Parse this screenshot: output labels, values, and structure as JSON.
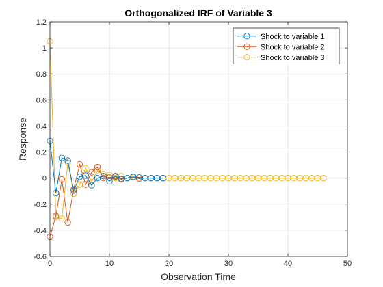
{
  "chart_data": {
    "type": "line",
    "title": "Orthogonalized IRF of Variable 3",
    "xlabel": "Observation Time",
    "ylabel": "Response",
    "xlim": [
      0,
      50
    ],
    "ylim": [
      -0.6,
      1.2
    ],
    "xticks": [
      0,
      10,
      20,
      30,
      40,
      50
    ],
    "yticks": [
      -0.6,
      -0.4,
      -0.2,
      0,
      0.2,
      0.4,
      0.6,
      0.8,
      1,
      1.2
    ],
    "xtick_labels": [
      "0",
      "10",
      "20",
      "30",
      "40",
      "50"
    ],
    "ytick_labels": [
      "-0.6",
      "-0.4",
      "-0.2",
      "0",
      "0.2",
      "0.4",
      "0.6",
      "0.8",
      "1",
      "1.2"
    ],
    "grid": true,
    "legend_position": "top-right",
    "marker": "open-circle",
    "series": [
      {
        "name": "Shock to variable 1",
        "color": "#0072BD",
        "x": [
          0,
          1,
          2,
          3,
          4,
          5,
          6,
          7,
          8,
          9,
          10,
          11,
          12,
          13,
          14,
          15,
          16,
          17,
          18,
          19
        ],
        "y": [
          0.285,
          -0.115,
          0.155,
          0.135,
          -0.095,
          0.01,
          0.02,
          -0.055,
          0.0,
          0.015,
          -0.025,
          0.015,
          -0.005,
          0.0,
          0.01,
          0.005,
          0.0,
          0.0,
          0.0,
          0.0
        ]
      },
      {
        "name": "Shock to variable 2",
        "color": "#D95319",
        "x": [
          0,
          1,
          2,
          3,
          4,
          5,
          6,
          7,
          8,
          9,
          10,
          11,
          12,
          13,
          14,
          15,
          16,
          17,
          18,
          19
        ],
        "y": [
          -0.45,
          -0.29,
          -0.01,
          -0.34,
          -0.085,
          0.105,
          -0.05,
          0.045,
          0.085,
          0.0,
          0.005,
          0.01,
          -0.01,
          0.0,
          0.01,
          -0.005,
          0.0,
          0.0,
          0.0,
          0.0
        ]
      },
      {
        "name": "Shock to variable 3",
        "color": "#EDB120",
        "x": [
          0,
          1,
          2,
          3,
          4,
          5,
          6,
          7,
          8,
          9,
          10,
          11,
          12,
          13,
          14,
          15,
          16,
          17,
          18,
          19,
          20,
          21,
          22,
          23,
          24,
          25,
          26,
          27,
          28,
          29,
          30,
          31,
          32,
          33,
          34,
          35,
          36,
          37,
          38,
          39,
          40,
          41,
          42,
          43,
          44,
          45,
          46
        ],
        "y": [
          1.05,
          -0.3,
          -0.31,
          0.12,
          -0.12,
          -0.05,
          0.075,
          -0.03,
          0.06,
          0.03,
          0.025,
          0.0,
          0.015,
          0.0,
          0.005,
          0.005,
          0,
          0,
          0,
          0,
          0,
          0,
          0,
          0,
          0,
          0,
          0,
          0,
          0,
          0,
          0,
          0,
          0,
          0,
          0,
          0,
          0,
          0,
          0,
          0,
          0,
          0,
          0,
          0,
          0,
          0,
          0
        ]
      }
    ]
  }
}
